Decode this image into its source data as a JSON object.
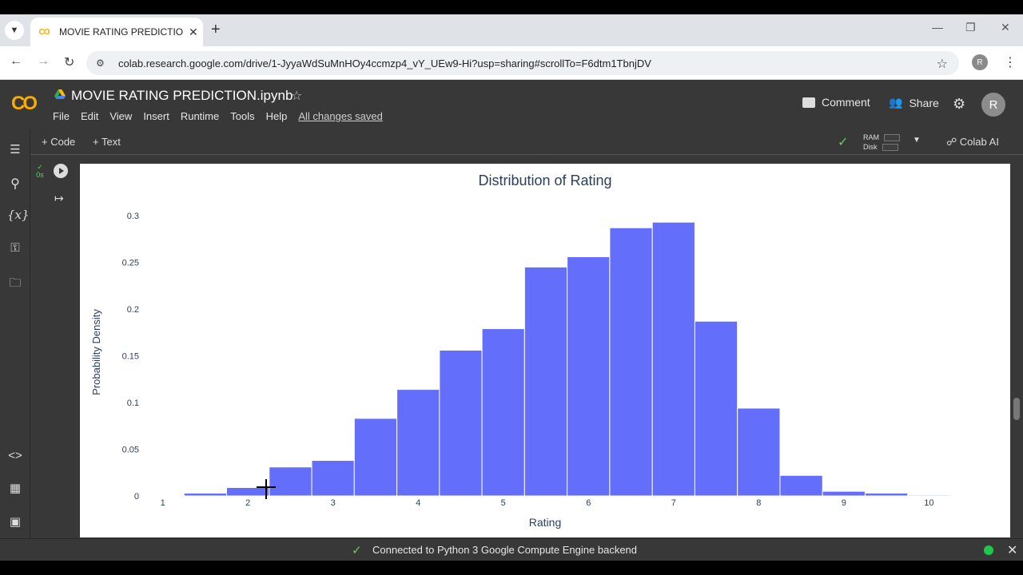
{
  "browser": {
    "tab_title": "MOVIE RATING PREDICTION.ip",
    "tab_favicon_text": "CO",
    "url": "colab.research.google.com/drive/1-JyyaWdSuMnHOy4ccmzp4_vY_UEw9-Hi?usp=sharing#scrollTo=F6dtm1TbnjDV",
    "profile_initial": "R"
  },
  "colab": {
    "logo": "CO",
    "notebook_title": "MOVIE RATING PREDICTION.ipynb",
    "menu": [
      "File",
      "Edit",
      "View",
      "Insert",
      "Runtime",
      "Tools",
      "Help"
    ],
    "saved_status": "All changes saved",
    "comment_label": "Comment",
    "share_label": "Share",
    "user_initial": "R"
  },
  "toolbar": {
    "add_code_label": "+ Code",
    "add_text_label": "+ Text",
    "ram_label": "RAM",
    "disk_label": "Disk",
    "colab_ai_label": "Colab AI"
  },
  "cell": {
    "exec_time": "0s"
  },
  "status": {
    "text": "Connected to Python 3 Google Compute Engine backend"
  },
  "sidebar_icons": [
    "table-of-contents-icon",
    "search-icon",
    "variables-icon",
    "secrets-key-icon",
    "files-folder-icon",
    "code-snippets-icon",
    "command-palette-icon",
    "terminal-icon"
  ],
  "chart_data": {
    "type": "bar",
    "title": "Distribution of Rating",
    "xlabel": "Rating",
    "ylabel": "Probability Density",
    "bar_color": "#636efa",
    "xlim": [
      0.75,
      10.25
    ],
    "ylim": [
      0,
      0.3
    ],
    "x_ticks": [
      1,
      2,
      3,
      4,
      5,
      6,
      7,
      8,
      9,
      10
    ],
    "y_ticks": [
      {
        "value": 0,
        "label": "0"
      },
      {
        "value": 0.05,
        "label": "0.05"
      },
      {
        "value": 0.1,
        "label": "0.1"
      },
      {
        "value": 0.15,
        "label": "0.15"
      },
      {
        "value": 0.2,
        "label": "0.2"
      },
      {
        "value": 0.25,
        "label": "0.25"
      },
      {
        "value": 0.3,
        "label": "0.3"
      }
    ],
    "bins": [
      {
        "x0": 0.75,
        "x1": 1.25,
        "y": 0.0005
      },
      {
        "x0": 1.25,
        "x1": 1.75,
        "y": 0.003
      },
      {
        "x0": 1.75,
        "x1": 2.25,
        "y": 0.009
      },
      {
        "x0": 2.25,
        "x1": 2.75,
        "y": 0.031
      },
      {
        "x0": 2.75,
        "x1": 3.25,
        "y": 0.038
      },
      {
        "x0": 3.25,
        "x1": 3.75,
        "y": 0.083
      },
      {
        "x0": 3.75,
        "x1": 4.25,
        "y": 0.114
      },
      {
        "x0": 4.25,
        "x1": 4.75,
        "y": 0.156
      },
      {
        "x0": 4.75,
        "x1": 5.25,
        "y": 0.179
      },
      {
        "x0": 5.25,
        "x1": 5.75,
        "y": 0.245
      },
      {
        "x0": 5.75,
        "x1": 6.25,
        "y": 0.256
      },
      {
        "x0": 6.25,
        "x1": 6.75,
        "y": 0.287
      },
      {
        "x0": 6.75,
        "x1": 7.25,
        "y": 0.293
      },
      {
        "x0": 7.25,
        "x1": 7.75,
        "y": 0.187
      },
      {
        "x0": 7.75,
        "x1": 8.25,
        "y": 0.094
      },
      {
        "x0": 8.25,
        "x1": 8.75,
        "y": 0.022
      },
      {
        "x0": 8.75,
        "x1": 9.25,
        "y": 0.005
      },
      {
        "x0": 9.25,
        "x1": 9.75,
        "y": 0.003
      },
      {
        "x0": 9.75,
        "x1": 10.25,
        "y": 0.001
      }
    ]
  }
}
